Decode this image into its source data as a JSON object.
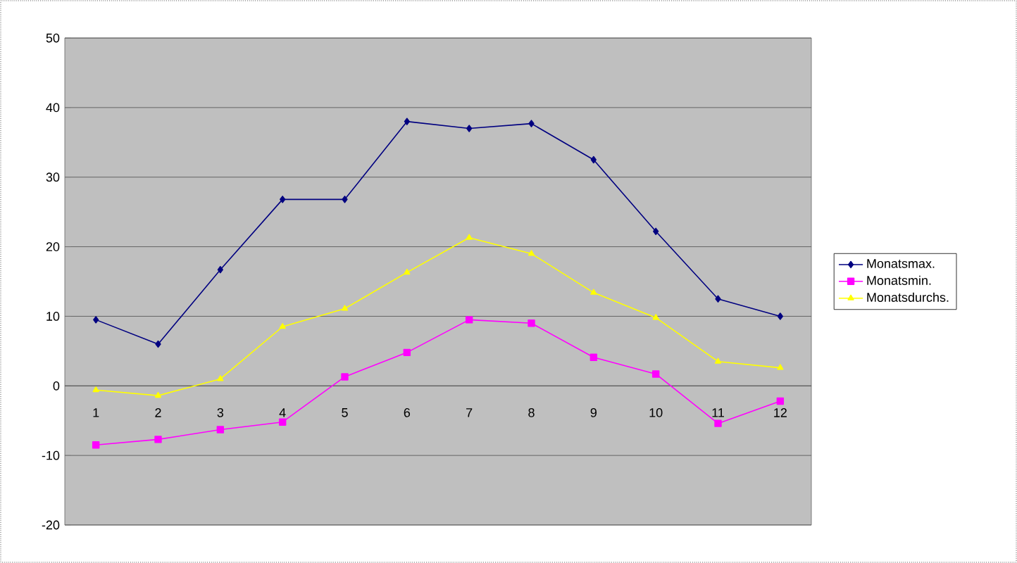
{
  "chart_data": {
    "type": "line",
    "categories": [
      "1",
      "2",
      "3",
      "4",
      "5",
      "6",
      "7",
      "8",
      "9",
      "10",
      "11",
      "12"
    ],
    "series": [
      {
        "name": "Monatsmax.",
        "color": "#000080",
        "marker": "diamond",
        "values": [
          9.5,
          6,
          16.7,
          26.8,
          26.8,
          38,
          37,
          37.7,
          32.5,
          22.2,
          12.5,
          10
        ]
      },
      {
        "name": "Monatsmin.",
        "color": "#ff00ff",
        "marker": "square",
        "values": [
          -8.5,
          -7.7,
          -6.3,
          -5.2,
          1.3,
          4.8,
          9.5,
          9,
          4.1,
          1.7,
          -5.4,
          -2.2
        ]
      },
      {
        "name": "Monatsdurchs.",
        "color": "#ffff00",
        "marker": "triangle",
        "values": [
          -0.6,
          -1.4,
          1,
          8.5,
          11.1,
          16.3,
          21.3,
          19,
          13.4,
          9.8,
          3.5,
          2.6
        ]
      }
    ],
    "ylim": [
      -20,
      50
    ],
    "yticks": [
      -20,
      -10,
      0,
      10,
      20,
      30,
      40,
      50
    ],
    "grid": "y",
    "legend": "right",
    "line_style": "solid"
  }
}
